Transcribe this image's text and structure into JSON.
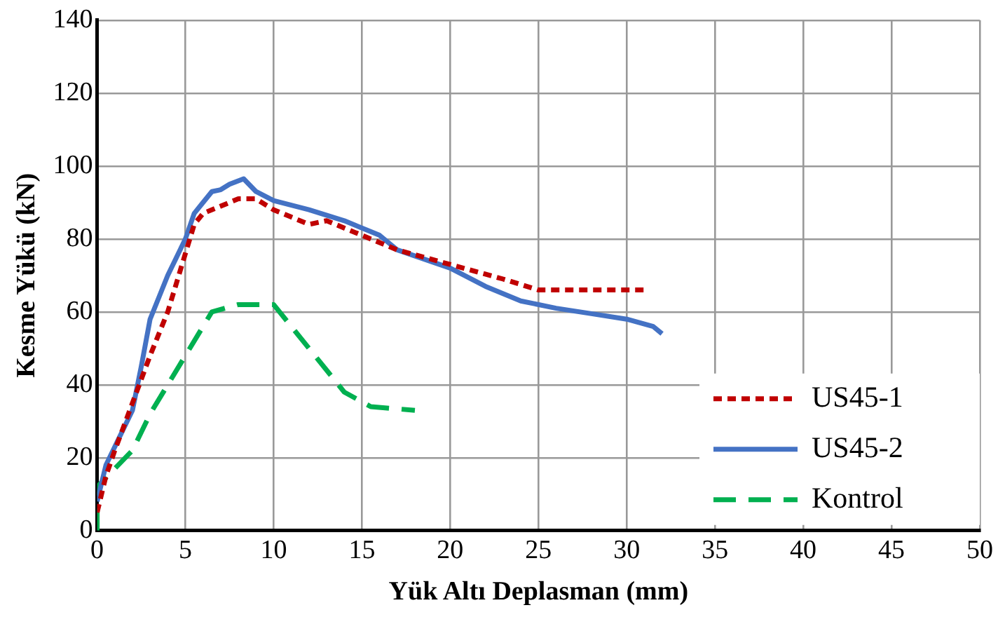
{
  "chart_data": {
    "type": "line",
    "xlabel": "Yük Altı Deplasman (mm)",
    "ylabel": "Kesme Yükü (kN)",
    "xlim": [
      0,
      50
    ],
    "xticks": [
      0,
      5,
      10,
      15,
      20,
      25,
      30,
      35,
      40,
      45,
      50
    ],
    "ylim": [
      0,
      140
    ],
    "yticks": [
      0,
      20,
      40,
      60,
      80,
      100,
      120,
      140
    ],
    "grid": true,
    "legend": "bottom right",
    "marker": "none",
    "series": [
      {
        "name": "US45-1",
        "color": "#c00000",
        "line_style": "dotted",
        "x": [
          0,
          0.5,
          1,
          2,
          3,
          4,
          5,
          5.5,
          6,
          7,
          8,
          9,
          10,
          11,
          12,
          13,
          15,
          17,
          20,
          23,
          25,
          28,
          31
        ],
        "values": [
          5,
          15,
          22,
          35,
          48,
          60,
          76,
          84,
          87,
          89,
          91,
          91,
          88,
          86,
          84,
          85,
          81,
          77,
          73,
          69,
          66,
          66,
          66
        ]
      },
      {
        "name": "US45-2",
        "color": "#4472c4",
        "line_style": "solid",
        "x": [
          0,
          0.5,
          1,
          2,
          2.5,
          3,
          4,
          5,
          5.5,
          6,
          6.5,
          7,
          7.5,
          8.3,
          9,
          10,
          12,
          14,
          16,
          17,
          20,
          22,
          24,
          26,
          28,
          30,
          31.5,
          32
        ],
        "values": [
          8,
          18,
          23,
          33,
          45,
          58,
          70,
          80,
          87,
          90,
          93,
          93.5,
          95,
          96.5,
          93,
          90.5,
          88,
          85,
          81,
          77,
          72,
          67,
          63,
          61,
          59.5,
          58,
          56,
          54
        ]
      },
      {
        "name": "Kontrol",
        "color": "#00b050",
        "line_style": "dashed",
        "x": [
          0,
          0,
          2,
          3,
          5,
          6.5,
          8,
          10,
          12,
          14,
          15.5,
          18
        ],
        "values": [
          0,
          12,
          22,
          32,
          48,
          60,
          62,
          62,
          50,
          38,
          34,
          33
        ]
      }
    ]
  }
}
